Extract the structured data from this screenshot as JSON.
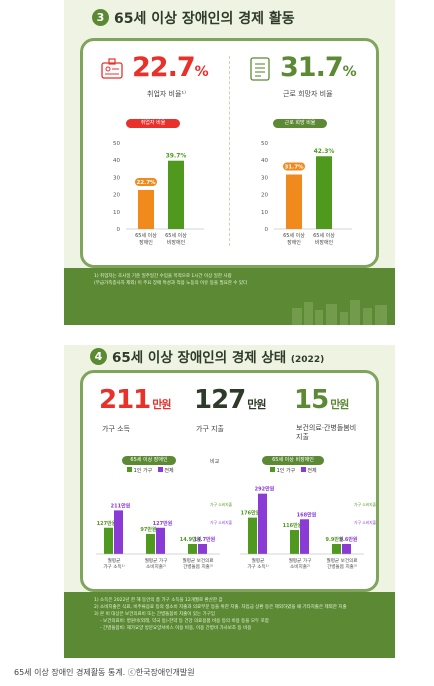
{
  "section1": {
    "number": "3",
    "title": "65세 이상 장애인의 경제 활동",
    "stat_left": {
      "value": "22.7",
      "unit": "%",
      "label": "취업자 비율¹⁾"
    },
    "stat_right": {
      "value": "31.7",
      "unit": "%",
      "label": "근로 희망자 비율"
    },
    "footnote_lines": [
      "1) 취업자는 조사일 기준 일주일간 수입을 목적으로 1시간 이상 일한 사람",
      "(무급가족종사자 제외) 이 주요 장애 특성과 적용 노동의 이유 등을 필요한 수 있다"
    ]
  },
  "section2": {
    "number": "4",
    "title": "65세 이상 장애인의 경제 상태",
    "year": "(2022)",
    "stats": [
      {
        "value": "211",
        "unit": "만원",
        "label": "가구 소득"
      },
      {
        "value": "127",
        "unit": "만원",
        "label": "가구 지출"
      },
      {
        "value": "15",
        "unit": "만원",
        "label": "보건의료·간병돌봄비 지출"
      }
    ],
    "footnote_lines": [
      "1) 소득은 2022년 한 해 동안의 총 가구 소득을 12개월로 환산한 값",
      "2) 소비지출은 식료, 비주류음료 등의 생소비 지출과 의료부문 등을 위한 지출. 차입금 상환 등은 제외하였을 때 기타지출은 제외한 지출",
      "3) 본 비 대상은 보건의료비 또는 간병돌봄비 지출이 있는 가구임",
      "- 보건의료비: 병원비(외래, 약국 등)·한약 등 건강 의료용품 비용 등의 비용 등을 모두 포함",
      "- 간병돌봄비: 재가요양 방문요양서비스 이용 비용, 이용 간병비 가사보조 등 비용"
    ]
  },
  "caption": "65세 이상 장애인 경제활동 통계. ⓒ한국장애인개발원",
  "colors": {
    "green_dark": "#5c8a34",
    "green_border": "#7fa55c",
    "red": "#e8312b",
    "orange": "#f08a1c",
    "green_bar": "#4f9a1e",
    "purple": "#8a3bd6",
    "dark_text": "#2f3b2a"
  },
  "icons": [
    "id-card-icon",
    "document-list-icon",
    "building-skyline-icon"
  ],
  "chart_data": [
    {
      "type": "bar",
      "title": "취업자 비율",
      "categories": [
        "65세 이상 장애인",
        "65세 이상 비장애인"
      ],
      "category_lines": [
        [
          "65세 이상",
          "장애인"
        ],
        [
          "65세 이상",
          "비장애인"
        ]
      ],
      "values": [
        22.7,
        39.7
      ],
      "value_labels": [
        "22.7%",
        "39.7%"
      ],
      "ylim": [
        0,
        50
      ],
      "yticks": [
        0,
        10,
        20,
        30,
        40,
        50
      ],
      "colors": [
        "#f08a1c",
        "#4f9a1e"
      ],
      "grid": false
    },
    {
      "type": "bar",
      "title": "근로 희망 비율",
      "categories": [
        "65세 이상 장애인",
        "65세 이상 비장애인"
      ],
      "category_lines": [
        [
          "65세 이상",
          "장애인"
        ],
        [
          "65세 이상",
          "비장애인"
        ]
      ],
      "values": [
        31.7,
        42.3
      ],
      "value_labels": [
        "31.7%",
        "42.3%"
      ],
      "ylim": [
        0,
        50
      ],
      "yticks": [
        0,
        10,
        20,
        30,
        40,
        50
      ],
      "colors": [
        "#f08a1c",
        "#4f9a1e"
      ],
      "grid": false
    },
    {
      "type": "bar",
      "title": "65세 이상 장애인",
      "units": "만원",
      "categories": [
        "월평균 가구 소득¹⁾",
        "월평균 가구 소비지출²⁾",
        "월평균 보건의료 간병돌봄 지출³⁾"
      ],
      "category_lines": [
        [
          "월평균",
          "가구 소득¹⁾"
        ],
        [
          "월평균 가구",
          "소비지출²⁾"
        ],
        [
          "월평균 보건의료",
          "간병돌봄 지출³⁾"
        ]
      ],
      "series": [
        {
          "name": "1인 가구",
          "values": [
            127,
            97,
            14.9
          ],
          "value_labels": [
            "127만원",
            "97만원",
            "14.9만원"
          ]
        },
        {
          "name": "전체",
          "values": [
            211,
            127,
            14.7
          ],
          "value_labels": [
            "211만원",
            "127만원",
            "14.7만원"
          ]
        }
      ],
      "colors": [
        "#4f9a1e",
        "#8a3bd6"
      ],
      "notes": [
        "가구 소비지출액의 15.4%",
        "가구 소비지출액의 11.6%"
      ]
    },
    {
      "type": "bar",
      "title": "65세 이상 비장애인",
      "units": "만원",
      "categories": [
        "월평균 가구 소득¹⁾",
        "월평균 가구 소비지출²⁾",
        "월평균 보건의료 간병돌봄 지출³⁾"
      ],
      "category_lines": [
        [
          "월평균",
          "가구 소득¹⁾"
        ],
        [
          "월평균 가구",
          "소비지출²⁾"
        ],
        [
          "월평균 보건의료",
          "간병돌봄 지출³⁾"
        ]
      ],
      "series": [
        {
          "name": "1인 가구",
          "values": [
            176,
            116,
            9.9
          ],
          "value_labels": [
            "176만원",
            "116만원",
            "9.9만원"
          ]
        },
        {
          "name": "전체",
          "values": [
            292,
            168,
            9.6
          ],
          "value_labels": [
            "292만원",
            "168만원",
            "9.6만원"
          ]
        }
      ],
      "colors": [
        "#4f9a1e",
        "#8a3bd6"
      ],
      "notes": [
        "가구 소비지출액의 8.5%",
        "가구 소비지출액의 5.7%"
      ]
    }
  ],
  "legend_label": "비교"
}
